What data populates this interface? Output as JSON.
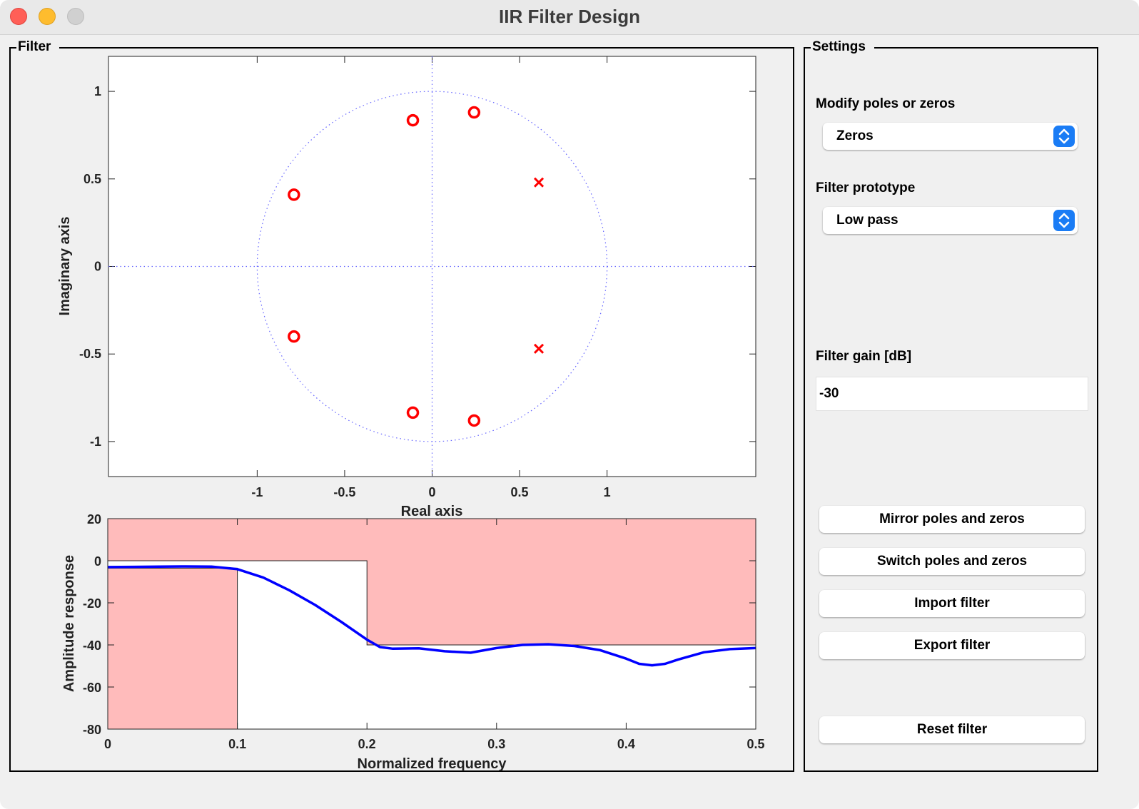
{
  "window": {
    "title": "IIR Filter Design"
  },
  "filter_panel": {
    "title": "Filter"
  },
  "settings": {
    "title": "Settings",
    "mode_label": "Modify poles or zeros",
    "mode_value": "Zeros",
    "prototype_label": "Filter prototype",
    "prototype_value": "Low pass",
    "gain_label": "Filter gain [dB]",
    "gain_value": "-30",
    "buttons": {
      "mirror": "Mirror poles and zeros",
      "switch": "Switch poles and zeros",
      "import": "Import filter",
      "export": "Export filter",
      "reset": "Reset filter"
    }
  },
  "colors": {
    "marker": "#ff0000",
    "response": "#0000ff",
    "zone": "#ffbbbb",
    "unit_circle": "#6666ff",
    "accent": "#1a7cf5"
  },
  "chart_data": [
    {
      "type": "scatter",
      "xlabel": "Real axis",
      "ylabel": "Imaginary axis",
      "xlim": [
        -1.85,
        1.85
      ],
      "ylim": [
        -1.2,
        1.2
      ],
      "xticks": [
        -1,
        -0.5,
        0,
        0.5,
        1
      ],
      "yticks": [
        -1,
        -0.5,
        0,
        0.5,
        1
      ],
      "xtick_labels": [
        "-1",
        "-0.5",
        "0",
        "0.5",
        "1"
      ],
      "ytick_labels": [
        "-1",
        "-0.5",
        "0",
        "0.5",
        "1"
      ],
      "unit_circle": true,
      "zeros": [
        {
          "re": -0.11,
          "im": 0.835
        },
        {
          "re": 0.24,
          "im": 0.88
        },
        {
          "re": -0.79,
          "im": 0.41
        },
        {
          "re": -0.79,
          "im": -0.4
        },
        {
          "re": -0.11,
          "im": -0.835
        },
        {
          "re": 0.24,
          "im": -0.88
        }
      ],
      "poles": [
        {
          "re": 0.61,
          "im": 0.48
        },
        {
          "re": 0.61,
          "im": -0.47
        }
      ]
    },
    {
      "type": "line",
      "xlabel": "Normalized frequency",
      "ylabel": "Amplitude response",
      "xlim": [
        0,
        0.5
      ],
      "ylim": [
        -80,
        20
      ],
      "xticks": [
        0,
        0.1,
        0.2,
        0.3,
        0.4,
        0.5
      ],
      "yticks": [
        20,
        0,
        -20,
        -40,
        -60,
        -80
      ],
      "xtick_labels": [
        "0",
        "0.1",
        "0.2",
        "0.3",
        "0.4",
        "0.5"
      ],
      "ytick_labels": [
        "20",
        "0",
        "-20",
        "-40",
        "-60",
        "-80"
      ],
      "passband": {
        "edge": 0.1,
        "max": 0
      },
      "stopband": {
        "edge": 0.2,
        "max": -40
      },
      "series": [
        {
          "x": [
            0,
            0.02,
            0.04,
            0.06,
            0.08,
            0.1,
            0.12,
            0.14,
            0.16,
            0.18,
            0.2,
            0.21,
            0.22,
            0.24,
            0.26,
            0.28,
            0.3,
            0.32,
            0.34,
            0.36,
            0.38,
            0.4,
            0.41,
            0.42,
            0.43,
            0.44,
            0.46,
            0.48,
            0.5
          ],
          "values": [
            -3,
            -2.9,
            -2.8,
            -2.7,
            -2.8,
            -4,
            -8,
            -14,
            -21,
            -29,
            -37.5,
            -41,
            -41.8,
            -41.6,
            -43,
            -43.7,
            -41.5,
            -40,
            -39.7,
            -40.5,
            -42.5,
            -46.5,
            -49,
            -49.7,
            -49,
            -47,
            -43.5,
            -42,
            -41.5
          ]
        }
      ]
    }
  ]
}
